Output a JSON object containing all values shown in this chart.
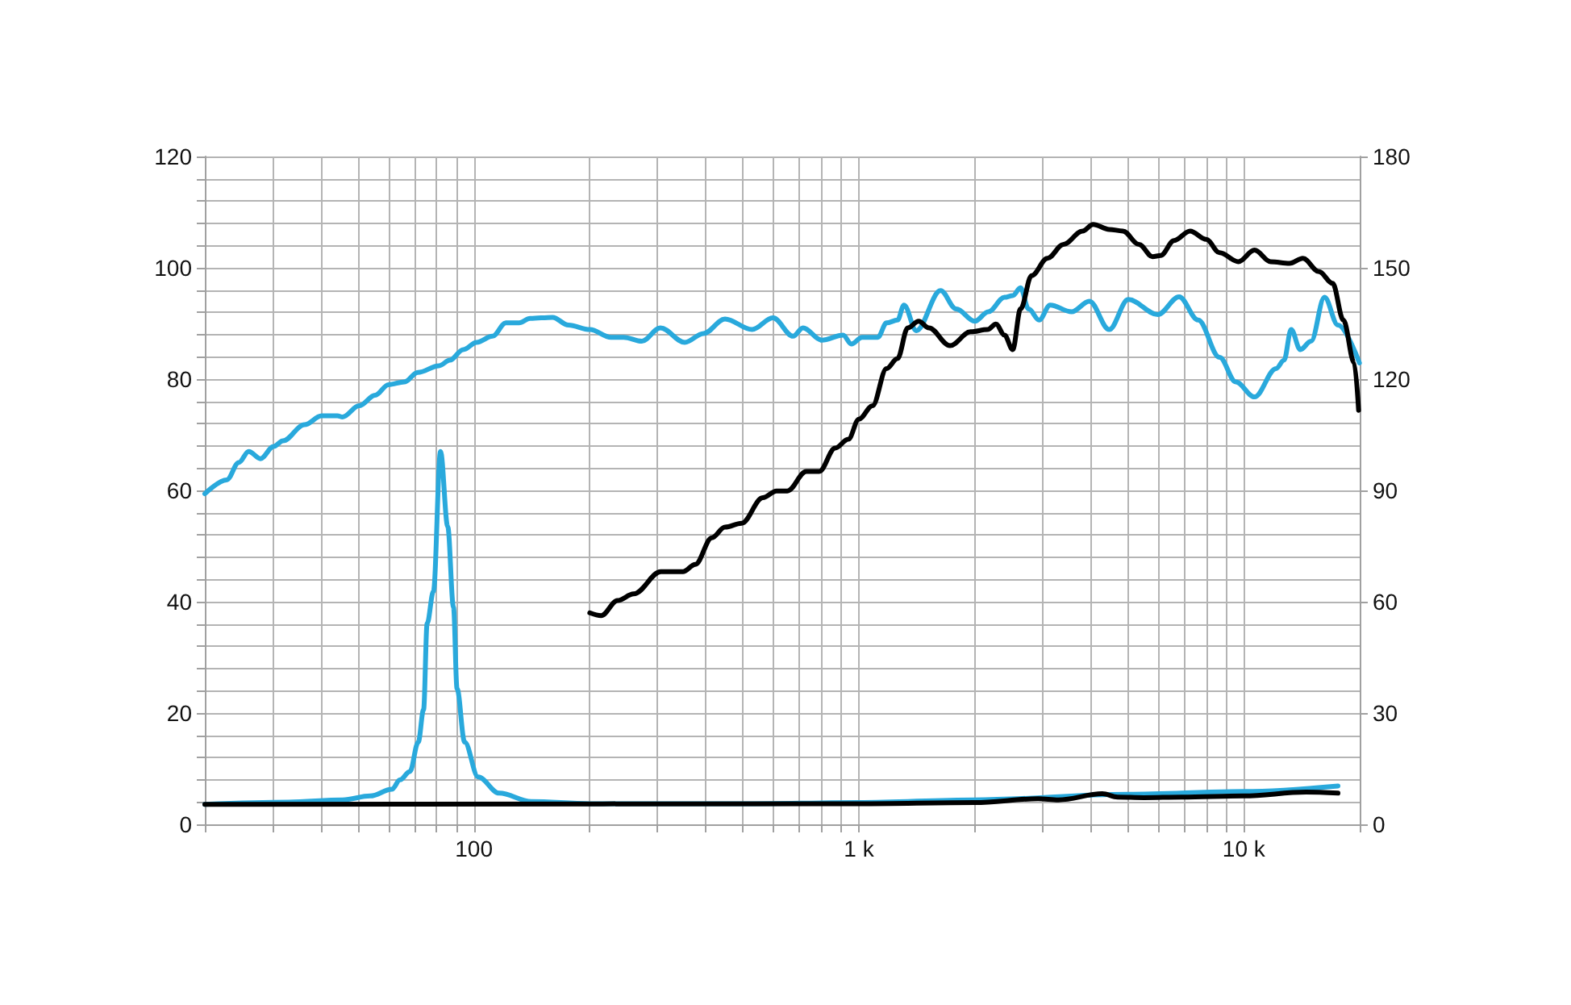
{
  "chart_data": {
    "type": "line",
    "log": "x",
    "grid": true,
    "marker": "none",
    "line_style": "solid",
    "xlim": [
      20,
      20000
    ],
    "xticks": [
      {
        "value": 20,
        "label": null
      },
      {
        "value": 30,
        "label": null
      },
      {
        "value": 40,
        "label": null
      },
      {
        "value": 50,
        "label": null
      },
      {
        "value": 60,
        "label": null
      },
      {
        "value": 70,
        "label": null
      },
      {
        "value": 80,
        "label": null
      },
      {
        "value": 90,
        "label": null
      },
      {
        "value": 100,
        "label": "100"
      },
      {
        "value": 200,
        "label": null
      },
      {
        "value": 300,
        "label": null
      },
      {
        "value": 400,
        "label": null
      },
      {
        "value": 500,
        "label": null
      },
      {
        "value": 600,
        "label": null
      },
      {
        "value": 700,
        "label": null
      },
      {
        "value": 800,
        "label": null
      },
      {
        "value": 900,
        "label": null
      },
      {
        "value": 1000,
        "label": "1 k"
      },
      {
        "value": 2000,
        "label": null
      },
      {
        "value": 3000,
        "label": null
      },
      {
        "value": 4000,
        "label": null
      },
      {
        "value": 5000,
        "label": null
      },
      {
        "value": 6000,
        "label": null
      },
      {
        "value": 7000,
        "label": null
      },
      {
        "value": 8000,
        "label": null
      },
      {
        "value": 9000,
        "label": null
      },
      {
        "value": 10000,
        "label": "10 k"
      },
      {
        "value": 20000,
        "label": null
      }
    ],
    "ylim": [
      0,
      120
    ],
    "yticks": [
      0,
      {
        "value": 4,
        "label": null
      },
      {
        "value": 8,
        "label": null
      },
      {
        "value": 12,
        "label": null
      },
      {
        "value": 16,
        "label": null
      },
      20,
      {
        "value": 24,
        "label": null
      },
      {
        "value": 28,
        "label": null
      },
      {
        "value": 32,
        "label": null
      },
      {
        "value": 36,
        "label": null
      },
      40,
      {
        "value": 44,
        "label": null
      },
      {
        "value": 48,
        "label": null
      },
      {
        "value": 52,
        "label": null
      },
      {
        "value": 56,
        "label": null
      },
      60,
      {
        "value": 64,
        "label": null
      },
      {
        "value": 68,
        "label": null
      },
      {
        "value": 72,
        "label": null
      },
      {
        "value": 76,
        "label": null
      },
      80,
      {
        "value": 84,
        "label": null
      },
      {
        "value": 88,
        "label": null
      },
      {
        "value": 92,
        "label": null
      },
      {
        "value": 96,
        "label": null
      },
      100,
      {
        "value": 104,
        "label": null
      },
      {
        "value": 108,
        "label": null
      },
      {
        "value": 112,
        "label": null
      },
      {
        "value": 116,
        "label": null
      },
      120
    ],
    "y2lim": [
      0,
      180
    ],
    "y2ticks": [
      0,
      30,
      60,
      90,
      120,
      150,
      180
    ],
    "series": [
      {
        "color": "#29a9dc",
        "x": [
          20,
          22.8,
          24.5,
          26,
          27.9,
          30.2,
          31.9,
          36.3,
          40.2,
          44.2,
          45.6,
          50.3,
          55.4,
          60,
          66,
          71.5,
          81.2,
          86.6,
          93.8,
          101.6,
          111.8,
          121,
          131,
          140,
          160,
          176,
          200,
          227,
          245,
          273,
          305,
          353,
          395,
          449,
          528,
          598,
          675,
          716,
          801,
          910,
          956,
          1020,
          1120,
          1180,
          1260,
          1310,
          1410,
          1630,
          1790,
          2000,
          2170,
          2390,
          2510,
          2630,
          2760,
          2940,
          3140,
          3570,
          3970,
          4470,
          5010,
          5980,
          6790,
          7610,
          8650,
          9530,
          10660,
          12130,
          12720,
          13270,
          14020,
          14950,
          16200,
          17560,
          19970
        ],
        "values": [
          59.4,
          61.9,
          65.0,
          67.0,
          65.7,
          67.9,
          68.9,
          71.8,
          73.4,
          73.4,
          73.2,
          75.2,
          77.1,
          79.0,
          79.5,
          81.2,
          82.4,
          83.4,
          85.3,
          86.6,
          87.7,
          90.1,
          90.1,
          90.9,
          91.1,
          89.7,
          88.9,
          87.5,
          87.5,
          86.8,
          89.2,
          86.6,
          88.2,
          90.8,
          88.9,
          91.0,
          87.7,
          89.2,
          87.0,
          87.9,
          86.3,
          87.5,
          87.5,
          90.1,
          90.6,
          93.3,
          88.7,
          95.9,
          92.6,
          90.4,
          92.1,
          94.7,
          95.0,
          96.4,
          92.6,
          90.6,
          93.3,
          92.1,
          94.0,
          88.9,
          94.3,
          91.6,
          94.8,
          90.6,
          83.9,
          79.5,
          76.8,
          81.9,
          83.4,
          88.9,
          85.3,
          86.8,
          94.7,
          89.7,
          82.9
        ]
      },
      {
        "color": "#29a9dc",
        "x": [
          20,
          33,
          45.6,
          53.8,
          61.2,
          64.3,
          68.2,
          71.7,
          74,
          75.6,
          78.5,
          81.9,
          85.5,
          88.5,
          90.4,
          94.6,
          102.6,
          116.3,
          141,
          200,
          500,
          1000,
          2000,
          5000,
          10000,
          17560
        ],
        "values": [
          3.6,
          4.0,
          4.4,
          5.1,
          6.3,
          8.0,
          9.5,
          14.8,
          20.6,
          36.1,
          41.9,
          67.0,
          53.5,
          39.0,
          24.4,
          14.8,
          8.5,
          5.6,
          4.1,
          3.7,
          3.7,
          3.9,
          4.4,
          5.4,
          5.9,
          6.9
        ]
      },
      {
        "color": "#000000",
        "x": [
          200,
          214,
          236,
          260,
          306,
          349,
          376,
          415,
          449,
          496,
          563,
          611,
          652,
          730,
          789,
          868,
          939,
          1000,
          1085,
          1180,
          1260,
          1340,
          1430,
          1520,
          1725,
          1950,
          2160,
          2270,
          2390,
          2510,
          2630,
          2810,
          3090,
          3400,
          3810,
          4060,
          4470,
          4850,
          5340,
          5790,
          6080,
          6590,
          7250,
          7990,
          8650,
          9680,
          10660,
          11740,
          13140,
          14240,
          15680,
          17010,
          18140,
          19360,
          19870
        ],
        "values": [
          38.0,
          37.5,
          40.2,
          41.4,
          45.4,
          45.4,
          46.7,
          51.5,
          53.4,
          54.1,
          58.7,
          59.9,
          59.9,
          63.4,
          63.4,
          67.6,
          69.2,
          72.8,
          75.2,
          81.9,
          83.7,
          89.2,
          90.4,
          89.2,
          86.0,
          88.5,
          88.9,
          89.9,
          87.9,
          85.3,
          92.6,
          98.6,
          101.7,
          104.2,
          106.6,
          107.8,
          106.9,
          106.6,
          104.2,
          102.0,
          102.2,
          104.9,
          106.6,
          105.1,
          102.7,
          101.1,
          103.2,
          101.1,
          100.8,
          101.7,
          99.3,
          97.2,
          90.6,
          82.9,
          74.4
        ]
      },
      {
        "color": "#000000",
        "x": [
          20,
          1000,
          2000,
          2920,
          3300,
          4290,
          4700,
          5500,
          6900,
          10000,
          14500,
          17560
        ],
        "values": [
          3.6,
          3.7,
          3.9,
          4.6,
          4.4,
          5.5,
          4.9,
          4.8,
          4.9,
          5.1,
          5.8,
          5.6
        ]
      }
    ]
  }
}
